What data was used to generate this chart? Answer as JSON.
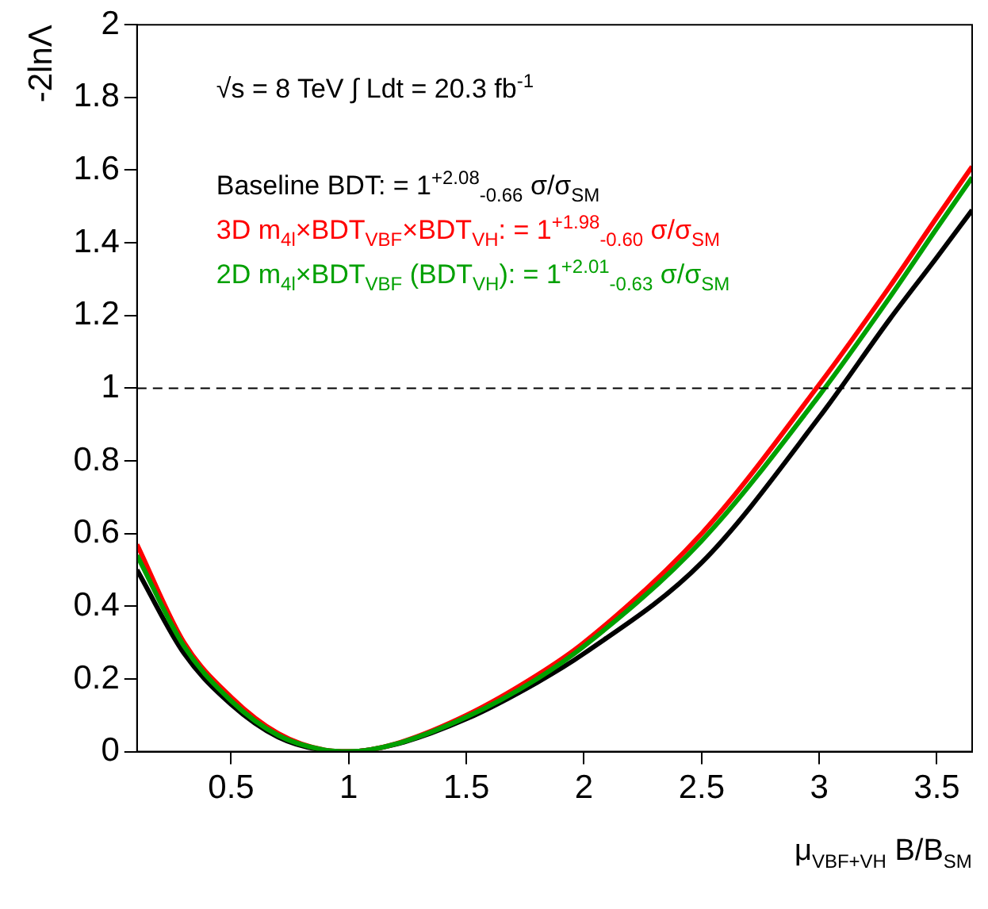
{
  "chart_data": {
    "type": "line",
    "ylabel": "-2lnΛ",
    "xlabel": "μ$_{VBF+VH}$ B/B$_{SM}$",
    "annotations": [
      "√s = 8 TeV ∫ Ldt = 20.3 fb$^{-1}$"
    ],
    "xlim": [
      0.1,
      3.65
    ],
    "xticks": [
      0.5,
      1,
      1.5,
      2,
      2.5,
      3,
      3.5
    ],
    "ylim": [
      0,
      2
    ],
    "yticks": [
      0,
      0.2,
      0.4,
      0.6,
      0.8,
      1,
      1.2,
      1.4,
      1.6,
      1.8,
      2
    ],
    "grid": false,
    "legend": "top left",
    "marker": "none",
    "line_style": "solid",
    "ref_lines": [
      {
        "axis": "y",
        "value": 1,
        "line_style": "dashed",
        "color": "#000000"
      }
    ],
    "series": [
      {
        "name": "Baseline BDT: = 1$^{+2.08}$$_{-0.66}$ σ/σ$_{SM}$",
        "color": "#000000",
        "x": [
          0.1,
          0.3,
          0.5,
          0.7,
          0.9,
          1.0,
          1.2,
          1.5,
          1.8,
          2.0,
          2.5,
          3.0,
          3.3,
          3.5,
          3.65
        ],
        "values": [
          0.5,
          0.27,
          0.13,
          0.04,
          0.003,
          0,
          0.02,
          0.09,
          0.19,
          0.27,
          0.52,
          0.92,
          1.19,
          1.36,
          1.49
        ]
      },
      {
        "name": "3D m$_{4l}$×BDT$_{VBF}$×BDT$_{VH}$: = 1$^{+1.98}$$_{-0.60}$ σ/σ$_{SM}$",
        "color": "#ff0000",
        "x": [
          0.1,
          0.3,
          0.5,
          0.7,
          0.9,
          1.0,
          1.2,
          1.5,
          1.8,
          2.0,
          2.5,
          3.0,
          3.3,
          3.5,
          3.65
        ],
        "values": [
          0.57,
          0.3,
          0.15,
          0.05,
          0.004,
          0,
          0.022,
          0.1,
          0.21,
          0.3,
          0.6,
          1.01,
          1.28,
          1.47,
          1.61
        ]
      },
      {
        "name": "2D m$_{4l}$×BDT$_{VBF}$ (BDT$_{VH}$): = 1$^{+2.01}$$_{-0.63}$ σ/σ$_{SM}$",
        "color": "#00a000",
        "x": [
          0.1,
          0.3,
          0.5,
          0.7,
          0.9,
          1.0,
          1.2,
          1.5,
          1.8,
          2.0,
          2.5,
          3.0,
          3.3,
          3.5,
          3.65
        ],
        "values": [
          0.54,
          0.29,
          0.14,
          0.045,
          0.004,
          0,
          0.021,
          0.095,
          0.2,
          0.29,
          0.58,
          0.98,
          1.25,
          1.44,
          1.58
        ]
      }
    ]
  }
}
